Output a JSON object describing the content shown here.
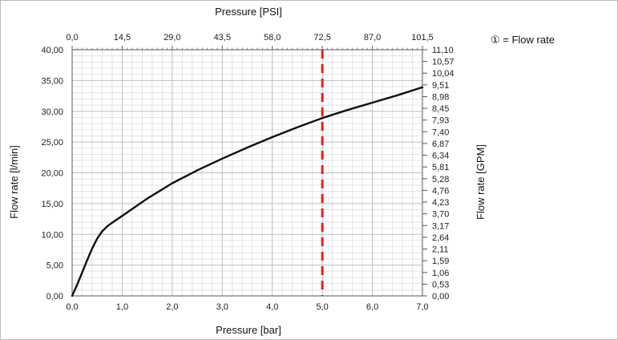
{
  "chart_data": {
    "type": "line",
    "title": "",
    "xlabel": "Pressure [bar]",
    "ylabel": "Flow rate [l/min]",
    "x2label": "Pressure [PSI]",
    "y2label": "Flow rate [GPM]",
    "xlim": [
      0,
      7
    ],
    "ylim": [
      0,
      40
    ],
    "x_ticks": [
      "0,0",
      "1,0",
      "2,0",
      "3,0",
      "4,0",
      "5,0",
      "6,0",
      "7,0"
    ],
    "y_ticks": [
      "0,00",
      "5,00",
      "10,00",
      "15,00",
      "20,00",
      "25,00",
      "30,00",
      "35,00",
      "40,00"
    ],
    "x2_ticks": [
      "0,0",
      "14,5",
      "29,0",
      "43,5",
      "58,0",
      "72,5",
      "87,0",
      "101,5"
    ],
    "y2_ticks": [
      "0,00",
      "0,53",
      "1,06",
      "1,59",
      "2,11",
      "2,64",
      "3,17",
      "3,70",
      "4,23",
      "4,76",
      "5,28",
      "5,81",
      "6,34",
      "6,87",
      "7,40",
      "7,93",
      "8,45",
      "8,98",
      "9,51",
      "10,04",
      "10,57",
      "11,10"
    ],
    "grid": true,
    "series": [
      {
        "x": [
          0,
          0.1,
          0.2,
          0.3,
          0.4,
          0.5,
          0.6,
          0.7,
          0.8,
          1.0,
          1.5,
          2.0,
          2.5,
          3.0,
          3.5,
          4.0,
          4.5,
          5.0,
          5.5,
          6.0,
          6.5,
          7.0
        ],
        "y": [
          0,
          1.8,
          3.8,
          5.8,
          7.7,
          9.3,
          10.5,
          11.3,
          11.9,
          13.0,
          15.8,
          18.3,
          20.4,
          22.3,
          24.1,
          25.8,
          27.4,
          28.9,
          30.2,
          31.4,
          32.6,
          33.9
        ],
        "color": "#111111"
      }
    ],
    "reference_line": {
      "x": 5.0,
      "color": "#e8201e",
      "style": "dashed"
    },
    "legend": {
      "text": "① = Flow rate",
      "position": "top-right"
    }
  }
}
